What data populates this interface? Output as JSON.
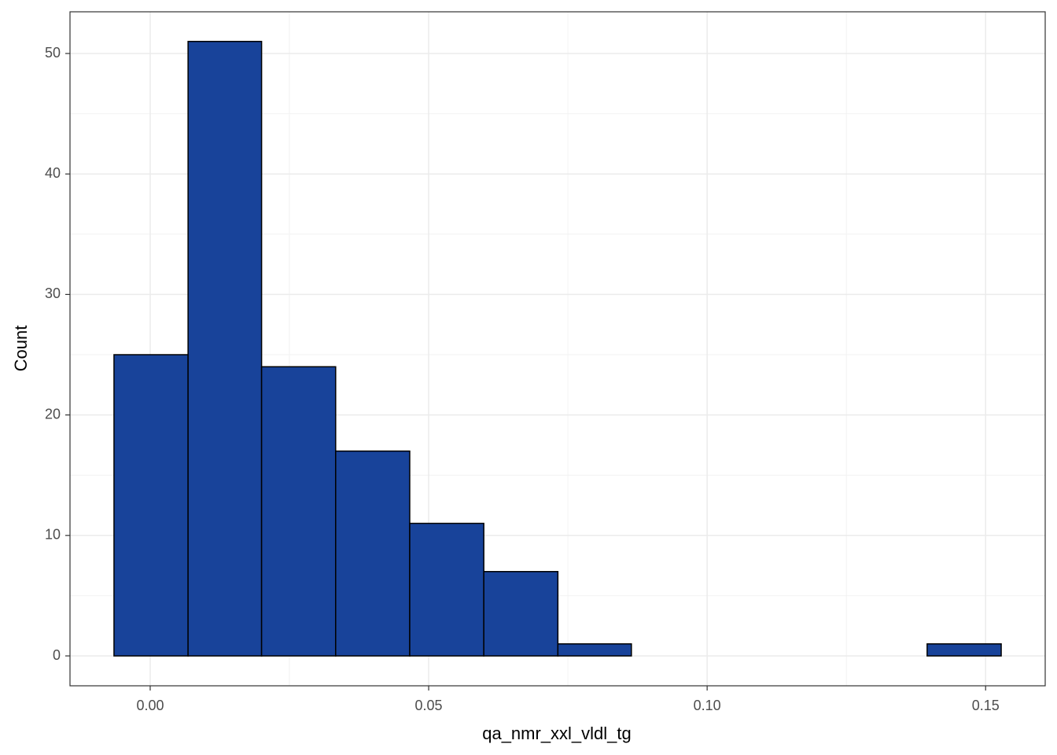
{
  "chart_data": {
    "type": "histogram",
    "x_label": "qa_nmr_xxl_vldl_tg",
    "y_label": "Count",
    "bins": [
      -0.0065,
      0.0068,
      0.02,
      0.0333,
      0.0466,
      0.0599,
      0.0732,
      0.0864,
      0.0997,
      0.113,
      0.1263,
      0.1395,
      0.1528
    ],
    "values": [
      25,
      51,
      24,
      17,
      11,
      7,
      1,
      0,
      0,
      0,
      0,
      1
    ],
    "color": "#18439a",
    "edge_color": "#000000",
    "xlim": [
      -0.0144,
      0.1607
    ],
    "ylim": [
      -2.48,
      53.46
    ],
    "xticks": [
      {
        "value": 0,
        "label": "0.00"
      },
      {
        "value": 0.05,
        "label": "0.05"
      },
      {
        "value": 0.1,
        "label": "0.10"
      },
      {
        "value": 0.15,
        "label": "0.15"
      }
    ],
    "yticks": [
      0,
      10,
      20,
      30,
      40,
      50
    ],
    "grid": true
  }
}
